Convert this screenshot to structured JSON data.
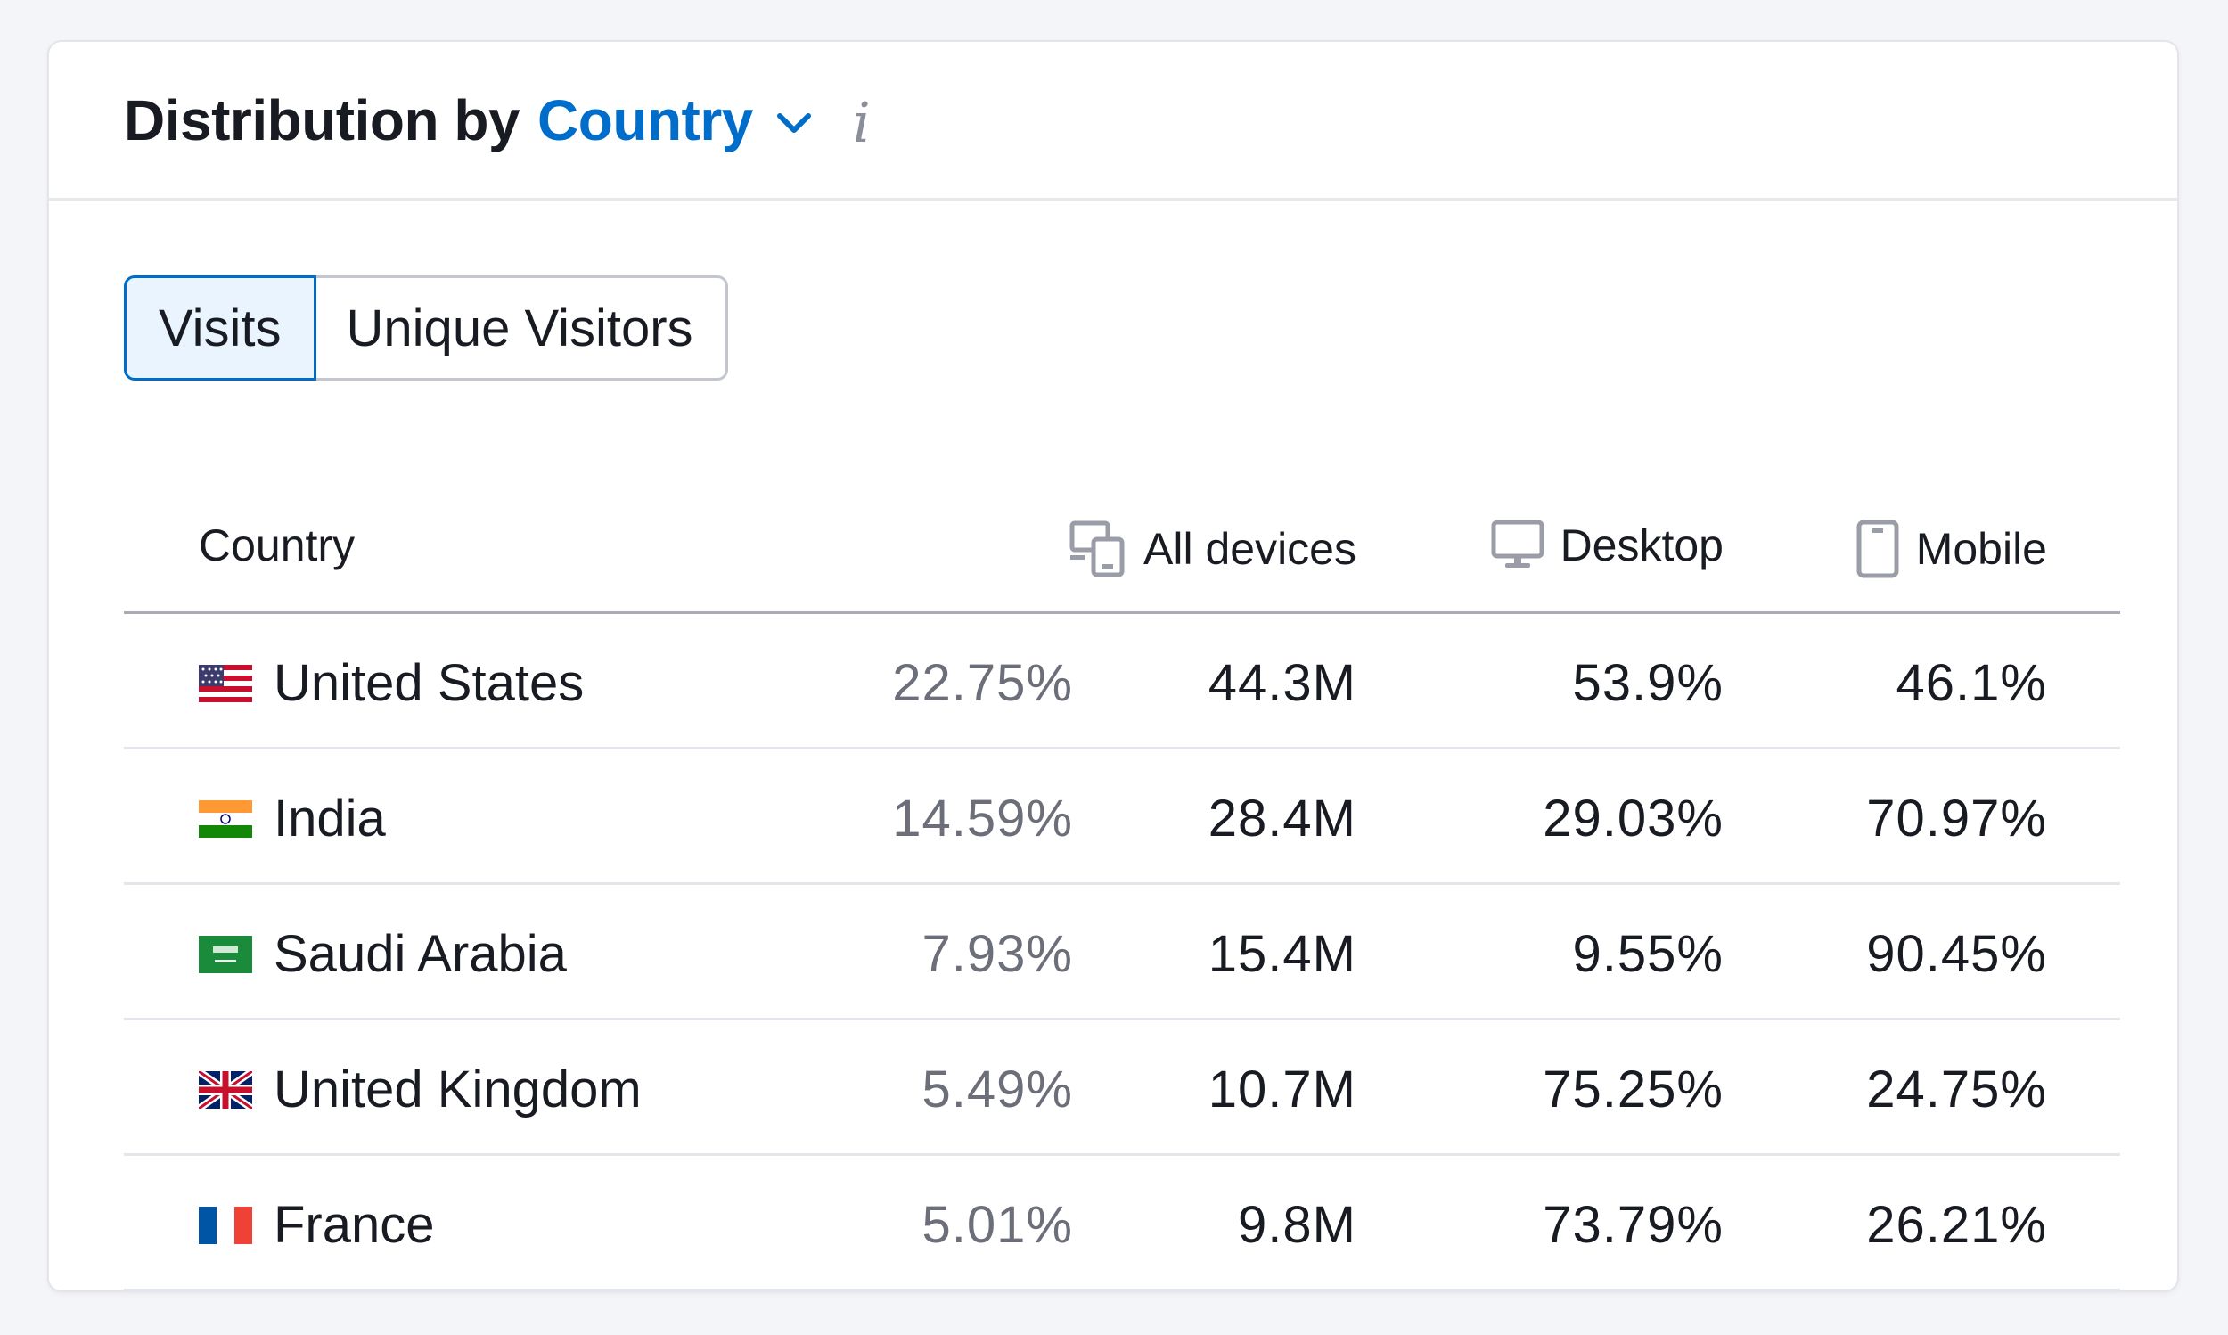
{
  "header": {
    "title_static": "Distribution by",
    "title_dropdown": "Country",
    "info_glyph": "i"
  },
  "tabs": [
    {
      "label": "Visits",
      "active": true
    },
    {
      "label": "Unique Visitors",
      "active": false
    }
  ],
  "table": {
    "columns": {
      "country": "Country",
      "all_devices": "All devices",
      "desktop": "Desktop",
      "mobile": "Mobile"
    },
    "rows": [
      {
        "country": "United States",
        "flag": "us-flag-icon",
        "share": "22.75%",
        "all_devices": "44.3M",
        "desktop": "53.9%",
        "mobile": "46.1%"
      },
      {
        "country": "India",
        "flag": "india-flag-icon",
        "share": "14.59%",
        "all_devices": "28.4M",
        "desktop": "29.03%",
        "mobile": "70.97%"
      },
      {
        "country": "Saudi Arabia",
        "flag": "saudi-arabia-flag-icon",
        "share": "7.93%",
        "all_devices": "15.4M",
        "desktop": "9.55%",
        "mobile": "90.45%"
      },
      {
        "country": "United Kingdom",
        "flag": "uk-flag-icon",
        "share": "5.49%",
        "all_devices": "10.7M",
        "desktop": "75.25%",
        "mobile": "24.75%"
      },
      {
        "country": "France",
        "flag": "france-flag-icon",
        "share": "5.01%",
        "all_devices": "9.8M",
        "desktop": "73.79%",
        "mobile": "26.21%"
      }
    ]
  },
  "colors": {
    "accent": "#006dca",
    "tab_active_bg": "#e9f4ff",
    "muted_text": "#6c6e79"
  },
  "icons": {
    "dropdown": "chevron-down-icon",
    "info": "info-icon",
    "all_devices": "all-devices-icon",
    "desktop": "desktop-icon",
    "mobile": "mobile-icon"
  }
}
